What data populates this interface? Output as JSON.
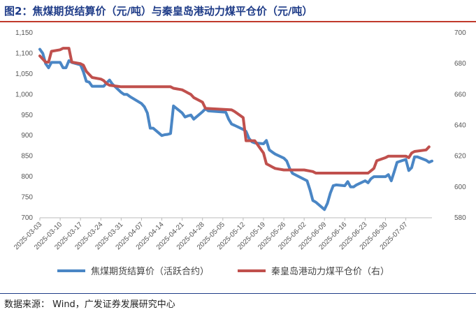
{
  "title": "图2：焦煤期货结算价（元/吨）与秦皇岛港动力煤平仓价（元/吨）",
  "source": "数据来源： Wind，广发证券发展研究中心",
  "colors": {
    "series1": "#4a86c5",
    "series2": "#c0504d",
    "title": "#1f3c88",
    "rule": "#c0392b"
  },
  "chart_data": {
    "type": "line",
    "x_ticks": [
      "2025-03-03",
      "2025-03-10",
      "2025-03-17",
      "2025-03-24",
      "2025-03-31",
      "2025-04-07",
      "2025-04-14",
      "2025-04-21",
      "2025-04-28",
      "2025-05-05",
      "2025-05-12",
      "2025-05-19",
      "2025-05-26",
      "2025-06-02",
      "2025-06-09",
      "2025-06-16",
      "2025-06-23",
      "2025-06-30",
      "2025-07-07"
    ],
    "y_left": {
      "min": 700,
      "max": 1150,
      "ticks": [
        "700",
        "750",
        "800",
        "850",
        "900",
        "950",
        "1,000",
        "1,050",
        "1,100",
        "1,150"
      ],
      "tick_values": [
        700,
        750,
        800,
        850,
        900,
        950,
        1000,
        1050,
        1100,
        1150
      ]
    },
    "y_right": {
      "min": 580,
      "max": 700,
      "ticks": [
        "580",
        "600",
        "620",
        "640",
        "660",
        "680",
        "700"
      ],
      "tick_values": [
        580,
        600,
        620,
        640,
        660,
        680,
        700
      ]
    },
    "grid": false,
    "legend_position": "bottom",
    "series": [
      {
        "name": "焦煤期货结算价（活跃合约）",
        "axis": "left",
        "color": "#4a86c5",
        "points": [
          [
            "2025-03-03",
            1110
          ],
          [
            "2025-03-04",
            1100
          ],
          [
            "2025-03-05",
            1075
          ],
          [
            "2025-03-06",
            1065
          ],
          [
            "2025-03-07",
            1078
          ],
          [
            "2025-03-10",
            1078
          ],
          [
            "2025-03-11",
            1065
          ],
          [
            "2025-03-12",
            1065
          ],
          [
            "2025-03-13",
            1082
          ],
          [
            "2025-03-14",
            1078
          ],
          [
            "2025-03-17",
            1072
          ],
          [
            "2025-03-18",
            1055
          ],
          [
            "2025-03-19",
            1032
          ],
          [
            "2025-03-20",
            1030
          ],
          [
            "2025-03-21",
            1020
          ],
          [
            "2025-03-24",
            1020
          ],
          [
            "2025-03-25",
            1020
          ],
          [
            "2025-03-26",
            1028
          ],
          [
            "2025-03-27",
            1035
          ],
          [
            "2025-03-28",
            1025
          ],
          [
            "2025-03-31",
            1005
          ],
          [
            "2025-04-01",
            1000
          ],
          [
            "2025-04-02",
            1000
          ],
          [
            "2025-04-03",
            995
          ],
          [
            "2025-04-07",
            978
          ],
          [
            "2025-04-08",
            970
          ],
          [
            "2025-04-09",
            955
          ],
          [
            "2025-04-10",
            918
          ],
          [
            "2025-04-11",
            918
          ],
          [
            "2025-04-14",
            900
          ],
          [
            "2025-04-15",
            902
          ],
          [
            "2025-04-16",
            903
          ],
          [
            "2025-04-17",
            905
          ],
          [
            "2025-04-18",
            972
          ],
          [
            "2025-04-21",
            955
          ],
          [
            "2025-04-22",
            945
          ],
          [
            "2025-04-23",
            948
          ],
          [
            "2025-04-24",
            950
          ],
          [
            "2025-04-25",
            940
          ],
          [
            "2025-04-28",
            958
          ],
          [
            "2025-04-29",
            965
          ],
          [
            "2025-04-30",
            960
          ],
          [
            "2025-05-06",
            957
          ],
          [
            "2025-05-07",
            940
          ],
          [
            "2025-05-08",
            928
          ],
          [
            "2025-05-09",
            925
          ],
          [
            "2025-05-12",
            915
          ],
          [
            "2025-05-13",
            910
          ],
          [
            "2025-05-14",
            893
          ],
          [
            "2025-05-15",
            885
          ],
          [
            "2025-05-16",
            882
          ],
          [
            "2025-05-19",
            880
          ],
          [
            "2025-05-20",
            888
          ],
          [
            "2025-05-21",
            865
          ],
          [
            "2025-05-22",
            860
          ],
          [
            "2025-05-23",
            855
          ],
          [
            "2025-05-26",
            845
          ],
          [
            "2025-05-27",
            838
          ],
          [
            "2025-05-28",
            820
          ],
          [
            "2025-05-29",
            808
          ],
          [
            "2025-06-03",
            790
          ],
          [
            "2025-06-04",
            768
          ],
          [
            "2025-06-05",
            742
          ],
          [
            "2025-06-06",
            738
          ],
          [
            "2025-06-09",
            720
          ],
          [
            "2025-06-10",
            735
          ],
          [
            "2025-06-11",
            760
          ],
          [
            "2025-06-12",
            778
          ],
          [
            "2025-06-13",
            780
          ],
          [
            "2025-06-16",
            778
          ],
          [
            "2025-06-17",
            788
          ],
          [
            "2025-06-18",
            775
          ],
          [
            "2025-06-19",
            775
          ],
          [
            "2025-06-20",
            780
          ],
          [
            "2025-06-23",
            790
          ],
          [
            "2025-06-24",
            785
          ],
          [
            "2025-06-25",
            795
          ],
          [
            "2025-06-26",
            800
          ],
          [
            "2025-06-27",
            800
          ],
          [
            "2025-06-30",
            800
          ],
          [
            "2025-07-01",
            805
          ],
          [
            "2025-07-02",
            790
          ],
          [
            "2025-07-03",
            812
          ],
          [
            "2025-07-04",
            835
          ],
          [
            "2025-07-07",
            842
          ],
          [
            "2025-07-08",
            815
          ],
          [
            "2025-07-09",
            822
          ],
          [
            "2025-07-10",
            848
          ],
          [
            "2025-07-11",
            848
          ],
          [
            "2025-07-14",
            840
          ],
          [
            "2025-07-15",
            835
          ],
          [
            "2025-07-16",
            838
          ]
        ]
      },
      {
        "name": "秦皇岛港动力煤平仓价（右）",
        "axis": "right",
        "color": "#c0504d",
        "points": [
          [
            "2025-03-03",
            685
          ],
          [
            "2025-03-05",
            681
          ],
          [
            "2025-03-06",
            681
          ],
          [
            "2025-03-07",
            688
          ],
          [
            "2025-03-10",
            689
          ],
          [
            "2025-03-11",
            690
          ],
          [
            "2025-03-13",
            690
          ],
          [
            "2025-03-14",
            681
          ],
          [
            "2025-03-17",
            680
          ],
          [
            "2025-03-18",
            679
          ],
          [
            "2025-03-19",
            675
          ],
          [
            "2025-03-20",
            673
          ],
          [
            "2025-03-21",
            671
          ],
          [
            "2025-03-24",
            670
          ],
          [
            "2025-03-25",
            669
          ],
          [
            "2025-03-26",
            667
          ],
          [
            "2025-03-27",
            666
          ],
          [
            "2025-03-31",
            665
          ],
          [
            "2025-04-14",
            665
          ],
          [
            "2025-04-17",
            665
          ],
          [
            "2025-04-18",
            664
          ],
          [
            "2025-04-21",
            663
          ],
          [
            "2025-04-22",
            662
          ],
          [
            "2025-04-23",
            661
          ],
          [
            "2025-04-24",
            660
          ],
          [
            "2025-04-25",
            658
          ],
          [
            "2025-04-28",
            655
          ],
          [
            "2025-04-29",
            651
          ],
          [
            "2025-05-08",
            650
          ],
          [
            "2025-05-09",
            649
          ],
          [
            "2025-05-12",
            645
          ],
          [
            "2025-05-13",
            630
          ],
          [
            "2025-05-16",
            630
          ],
          [
            "2025-05-19",
            622
          ],
          [
            "2025-05-20",
            615
          ],
          [
            "2025-05-21",
            614
          ],
          [
            "2025-05-22",
            613
          ],
          [
            "2025-05-23",
            612
          ],
          [
            "2025-05-26",
            611
          ],
          [
            "2025-06-02",
            611
          ],
          [
            "2025-06-05",
            610
          ],
          [
            "2025-06-06",
            609
          ],
          [
            "2025-06-24",
            609
          ],
          [
            "2025-06-26",
            612
          ],
          [
            "2025-06-27",
            617
          ],
          [
            "2025-06-30",
            619
          ],
          [
            "2025-07-01",
            620
          ],
          [
            "2025-07-07",
            620
          ],
          [
            "2025-07-08",
            619
          ],
          [
            "2025-07-09",
            622
          ],
          [
            "2025-07-10",
            623
          ],
          [
            "2025-07-14",
            624
          ],
          [
            "2025-07-15",
            626
          ]
        ]
      }
    ]
  }
}
